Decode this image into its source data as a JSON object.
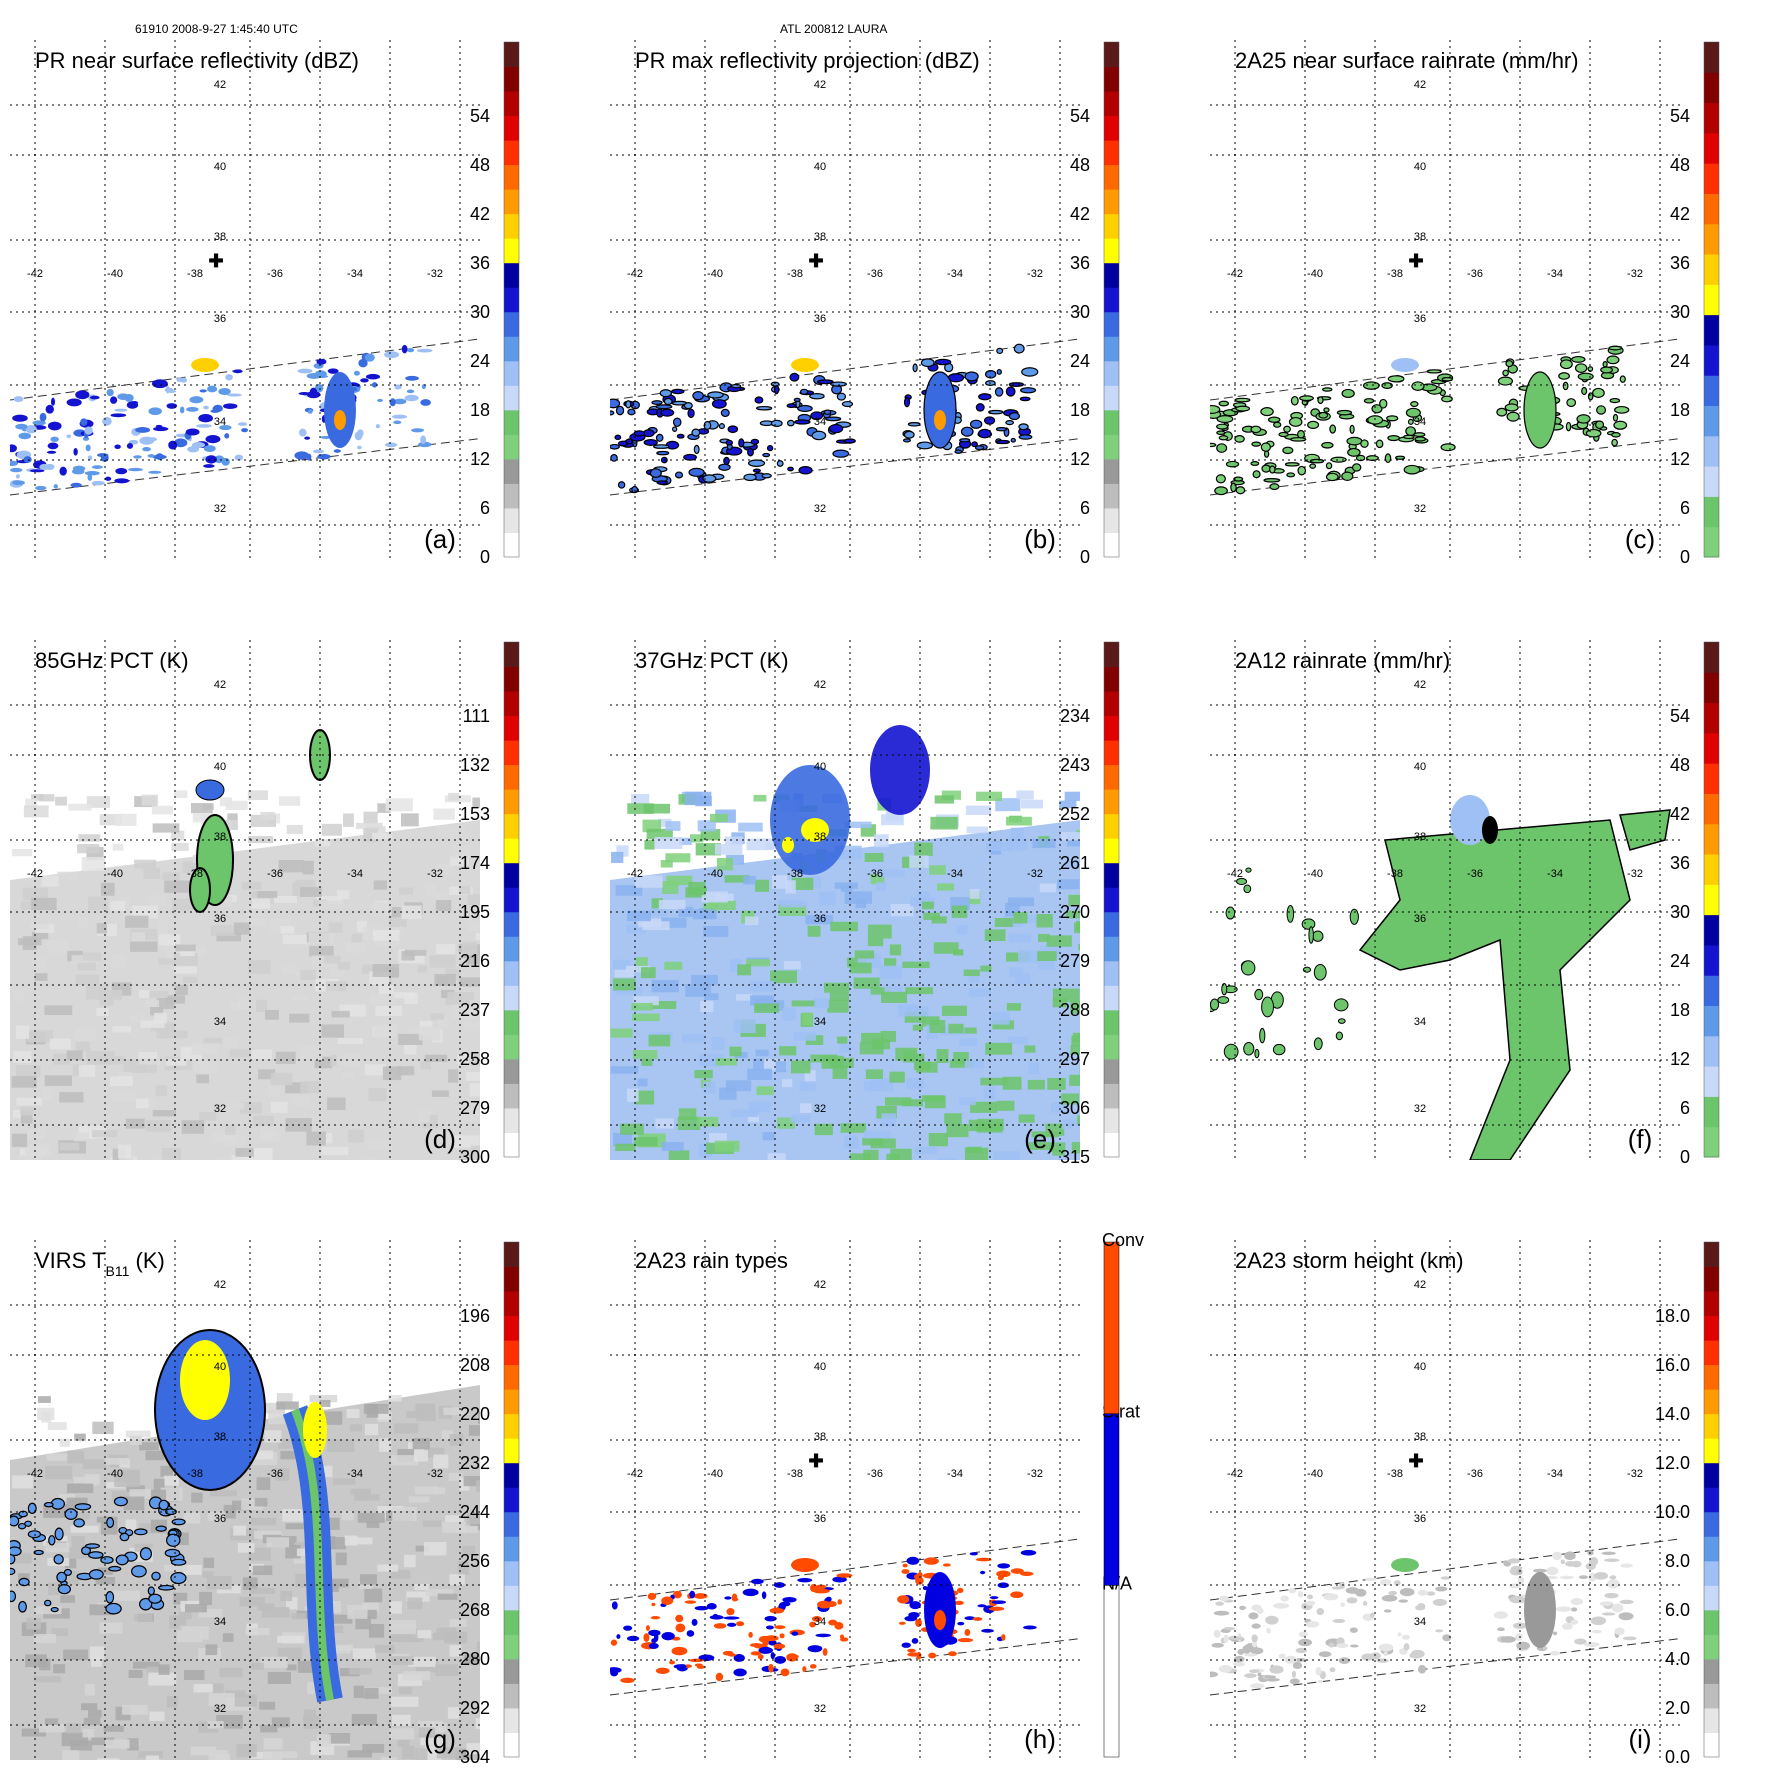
{
  "header": {
    "left": "61910 2008-9-27 1:45:40 UTC",
    "center": "ATL 200812 LAURA"
  },
  "lat_ticks": [
    "42",
    "40",
    "38",
    "36",
    "34",
    "32"
  ],
  "lon_ticks": [
    "-42",
    "-40",
    "-38",
    "-36",
    "-34",
    "-32"
  ],
  "panels": [
    {
      "id": "a",
      "title": "PR near surface reflectivity (dBZ)",
      "label": "(a)",
      "field": "sparse_swath",
      "cb": {
        "colors": [
          "#ffffff",
          "#e6e6e6",
          "#bdbdbd",
          "#999999",
          "#7fd07a",
          "#6cc46b",
          "#c8d8f8",
          "#9fc0f5",
          "#5f9ae8",
          "#3a6ae0",
          "#1414d0",
          "#0000a0",
          "#ffff00",
          "#ffd000",
          "#ff9a00",
          "#ff6a00",
          "#ff3000",
          "#e00000",
          "#b00000",
          "#800000",
          "#5a1a1a"
        ],
        "labels": [
          "0",
          "6",
          "12",
          "18",
          "24",
          "30",
          "36",
          "42",
          "48",
          "54"
        ],
        "label_pos": [
          0,
          2,
          4,
          6,
          8,
          10,
          12,
          14,
          16,
          18
        ]
      }
    },
    {
      "id": "b",
      "title": "PR max reflectivity projection (dBZ)",
      "label": "(b)",
      "field": "sparse_swath_contour",
      "cb": {
        "colors": [
          "#ffffff",
          "#e6e6e6",
          "#bdbdbd",
          "#999999",
          "#7fd07a",
          "#6cc46b",
          "#c8d8f8",
          "#9fc0f5",
          "#5f9ae8",
          "#3a6ae0",
          "#1414d0",
          "#0000a0",
          "#ffff00",
          "#ffd000",
          "#ff9a00",
          "#ff6a00",
          "#ff3000",
          "#e00000",
          "#b00000",
          "#800000",
          "#5a1a1a"
        ],
        "labels": [
          "0",
          "6",
          "12",
          "18",
          "24",
          "30",
          "36",
          "42",
          "48",
          "54"
        ],
        "label_pos": [
          0,
          2,
          4,
          6,
          8,
          10,
          12,
          14,
          16,
          18
        ]
      }
    },
    {
      "id": "c",
      "title": "2A25 near surface rainrate (mm/hr)",
      "label": "(c)",
      "field": "sparse_swath_green",
      "cb": {
        "colors": [
          "#7fd07a",
          "#6cc46b",
          "#c8d8f8",
          "#9fc0f5",
          "#5f9ae8",
          "#3a6ae0",
          "#1414d0",
          "#0000a0",
          "#ffff00",
          "#ffd000",
          "#ff9a00",
          "#ff6a00",
          "#ff3000",
          "#e00000",
          "#b00000",
          "#800000",
          "#5a1a1a"
        ],
        "labels": [
          "0",
          "6",
          "12",
          "18",
          "24",
          "30",
          "36",
          "42",
          "48",
          "54"
        ],
        "label_pos": [
          0,
          2,
          4,
          6,
          8,
          10,
          12,
          14,
          16,
          18
        ]
      }
    },
    {
      "id": "d",
      "title": "85GHz PCT (K)",
      "label": "(d)",
      "field": "gray_wide",
      "cb": {
        "colors": [
          "#ffffff",
          "#e6e6e6",
          "#bdbdbd",
          "#999999",
          "#7fd07a",
          "#6cc46b",
          "#c8d8f8",
          "#9fc0f5",
          "#5f9ae8",
          "#3a6ae0",
          "#1414d0",
          "#0000a0",
          "#ffff00",
          "#ffd000",
          "#ff9a00",
          "#ff6a00",
          "#ff3000",
          "#e00000",
          "#b00000",
          "#800000",
          "#5a1a1a"
        ],
        "labels": [
          "300",
          "279",
          "258",
          "237",
          "216",
          "195",
          "174",
          "153",
          "132",
          "111"
        ],
        "label_pos": [
          0,
          2,
          4,
          6,
          8,
          10,
          12,
          14,
          16,
          18
        ]
      }
    },
    {
      "id": "e",
      "title": "37GHz PCT (K)",
      "label": "(e)",
      "field": "blue_wide",
      "cb": {
        "colors": [
          "#ffffff",
          "#e6e6e6",
          "#bdbdbd",
          "#999999",
          "#7fd07a",
          "#6cc46b",
          "#c8d8f8",
          "#9fc0f5",
          "#5f9ae8",
          "#3a6ae0",
          "#1414d0",
          "#0000a0",
          "#ffff00",
          "#ffd000",
          "#ff9a00",
          "#ff6a00",
          "#ff3000",
          "#e00000",
          "#b00000",
          "#800000",
          "#5a1a1a"
        ],
        "labels": [
          "315",
          "306",
          "297",
          "288",
          "279",
          "270",
          "261",
          "252",
          "243",
          "234"
        ],
        "label_pos": [
          0,
          2,
          4,
          6,
          8,
          10,
          12,
          14,
          16,
          18
        ]
      }
    },
    {
      "id": "f",
      "title": "2A12 rainrate (mm/hr)",
      "label": "(f)",
      "field": "green_wide",
      "cb": {
        "colors": [
          "#7fd07a",
          "#6cc46b",
          "#c8d8f8",
          "#9fc0f5",
          "#5f9ae8",
          "#3a6ae0",
          "#1414d0",
          "#0000a0",
          "#ffff00",
          "#ffd000",
          "#ff9a00",
          "#ff6a00",
          "#ff3000",
          "#e00000",
          "#b00000",
          "#800000",
          "#5a1a1a"
        ],
        "labels": [
          "0",
          "6",
          "12",
          "18",
          "24",
          "30",
          "36",
          "42",
          "48",
          "54"
        ],
        "label_pos": [
          0,
          2,
          4,
          6,
          8,
          10,
          12,
          14,
          16,
          18
        ]
      }
    },
    {
      "id": "g",
      "title": "VIRS T",
      "title_sub": "B11",
      "title_tail": " (K)",
      "label": "(g)",
      "field": "virs",
      "cb": {
        "colors": [
          "#ffffff",
          "#e6e6e6",
          "#bdbdbd",
          "#999999",
          "#7fd07a",
          "#6cc46b",
          "#c8d8f8",
          "#9fc0f5",
          "#5f9ae8",
          "#3a6ae0",
          "#1414d0",
          "#0000a0",
          "#ffff00",
          "#ffd000",
          "#ff9a00",
          "#ff6a00",
          "#ff3000",
          "#e00000",
          "#b00000",
          "#800000",
          "#5a1a1a"
        ],
        "labels": [
          "304",
          "292",
          "280",
          "268",
          "256",
          "244",
          "232",
          "220",
          "208",
          "196"
        ],
        "label_pos": [
          0,
          2,
          4,
          6,
          8,
          10,
          12,
          14,
          16,
          18
        ]
      }
    },
    {
      "id": "h",
      "title": "2A23 rain types",
      "label": "(h)",
      "field": "raintype",
      "cb": {
        "type": "categorical",
        "colors": [
          "#ffffff",
          "#0000e0",
          "#ff4a00"
        ],
        "labels": [
          "N/A",
          "Strat",
          "Conv"
        ]
      }
    },
    {
      "id": "i",
      "title": "2A23 storm height (km)",
      "label": "(i)",
      "field": "sparse_swath_gray",
      "cb": {
        "colors": [
          "#ffffff",
          "#e6e6e6",
          "#bdbdbd",
          "#999999",
          "#7fd07a",
          "#6cc46b",
          "#c8d8f8",
          "#9fc0f5",
          "#5f9ae8",
          "#3a6ae0",
          "#1414d0",
          "#0000a0",
          "#ffff00",
          "#ffd000",
          "#ff9a00",
          "#ff6a00",
          "#ff3000",
          "#e00000",
          "#b00000",
          "#800000",
          "#5a1a1a"
        ],
        "labels": [
          "0.0",
          "2.0",
          "4.0",
          "6.0",
          "8.0",
          "10.0",
          "12.0",
          "14.0",
          "16.0",
          "18.0"
        ],
        "label_pos": [
          0,
          2,
          4,
          6,
          8,
          10,
          12,
          14,
          16,
          18
        ]
      }
    }
  ],
  "colors": {
    "grid": "#000000",
    "center_marker": "#000000"
  }
}
